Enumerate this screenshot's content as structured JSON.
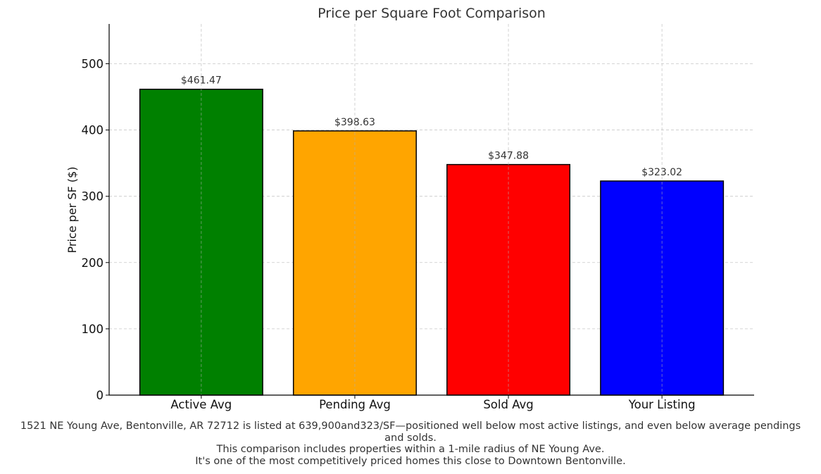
{
  "chart_data": {
    "type": "bar",
    "title": "Price per Square Foot Comparison",
    "xlabel": "",
    "ylabel": "Price per SF ($)",
    "categories": [
      "Active Avg",
      "Pending Avg",
      "Sold Avg",
      "Your Listing"
    ],
    "values": [
      461.47,
      398.63,
      347.88,
      323.02
    ],
    "data_labels": [
      "$461.47",
      "$398.63",
      "$347.88",
      "$323.02"
    ],
    "colors": [
      "#008000",
      "#ffa500",
      "#ff0000",
      "#0000ff"
    ],
    "ylim": [
      0,
      560
    ],
    "yticks": [
      0,
      100,
      200,
      300,
      400,
      500
    ],
    "grid": true
  },
  "caption": [
    "1521 NE Young Ave, Bentonville, AR 72712 is listed at 639,900and323/SF—positioned well below most active listings, and even below average pendings and solds.",
    "This comparison includes properties within a 1-mile radius of NE Young Ave.",
    "It's one of the most competitively priced homes this close to Downtown Bentonville."
  ]
}
